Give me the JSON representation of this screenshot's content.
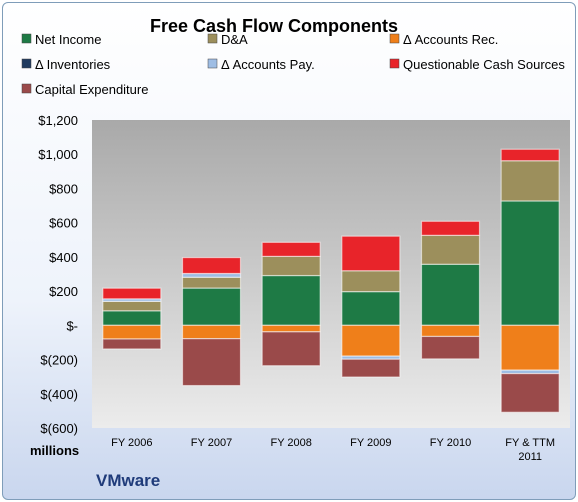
{
  "chart_data": {
    "type": "bar",
    "stacked": true,
    "title": "Free Cash Flow Components",
    "units_label": "millions",
    "company": "VMware",
    "categories": [
      "FY 2006",
      "FY 2007",
      "FY 2008",
      "FY 2009",
      "FY 2010",
      "FY & TTM\n2011"
    ],
    "ylim": [
      -600,
      1200
    ],
    "yticks": [
      -600,
      -400,
      -200,
      0,
      200,
      400,
      600,
      800,
      1000,
      1200
    ],
    "ytick_labels": [
      "$(600)",
      "$(400)",
      "$(200)",
      "$-",
      "$200",
      "$400",
      "$600",
      "$800",
      "$1,000",
      "$1,200"
    ],
    "grid": false,
    "legend_position": "top",
    "series": [
      {
        "name": "Net Income",
        "color": "#1e7a45",
        "values": [
          85,
          218,
          291,
          197,
          357,
          727
        ]
      },
      {
        "name": "D&A",
        "color": "#9c8f5c",
        "values": [
          55,
          63,
          112,
          122,
          169,
          235
        ]
      },
      {
        "name": "Δ Accounts Rec.",
        "color": "#ef7f1a",
        "values": [
          -80,
          -78,
          -38,
          -180,
          -65,
          -262
        ]
      },
      {
        "name": "Δ Inventories",
        "color": "#1f3a5f",
        "values": [
          0,
          0,
          0,
          0,
          0,
          0
        ]
      },
      {
        "name": "Δ Accounts Pay.",
        "color": "#9ebde4",
        "values": [
          15,
          22,
          0,
          -18,
          0,
          -20
        ]
      },
      {
        "name": "Questionable Cash Sources",
        "color": "#e8242a",
        "values": [
          62,
          93,
          82,
          202,
          82,
          67
        ]
      },
      {
        "name": "Capital Expenditure",
        "color": "#9a4a4a",
        "values": [
          -58,
          -274,
          -198,
          -104,
          -131,
          -226
        ]
      }
    ]
  }
}
